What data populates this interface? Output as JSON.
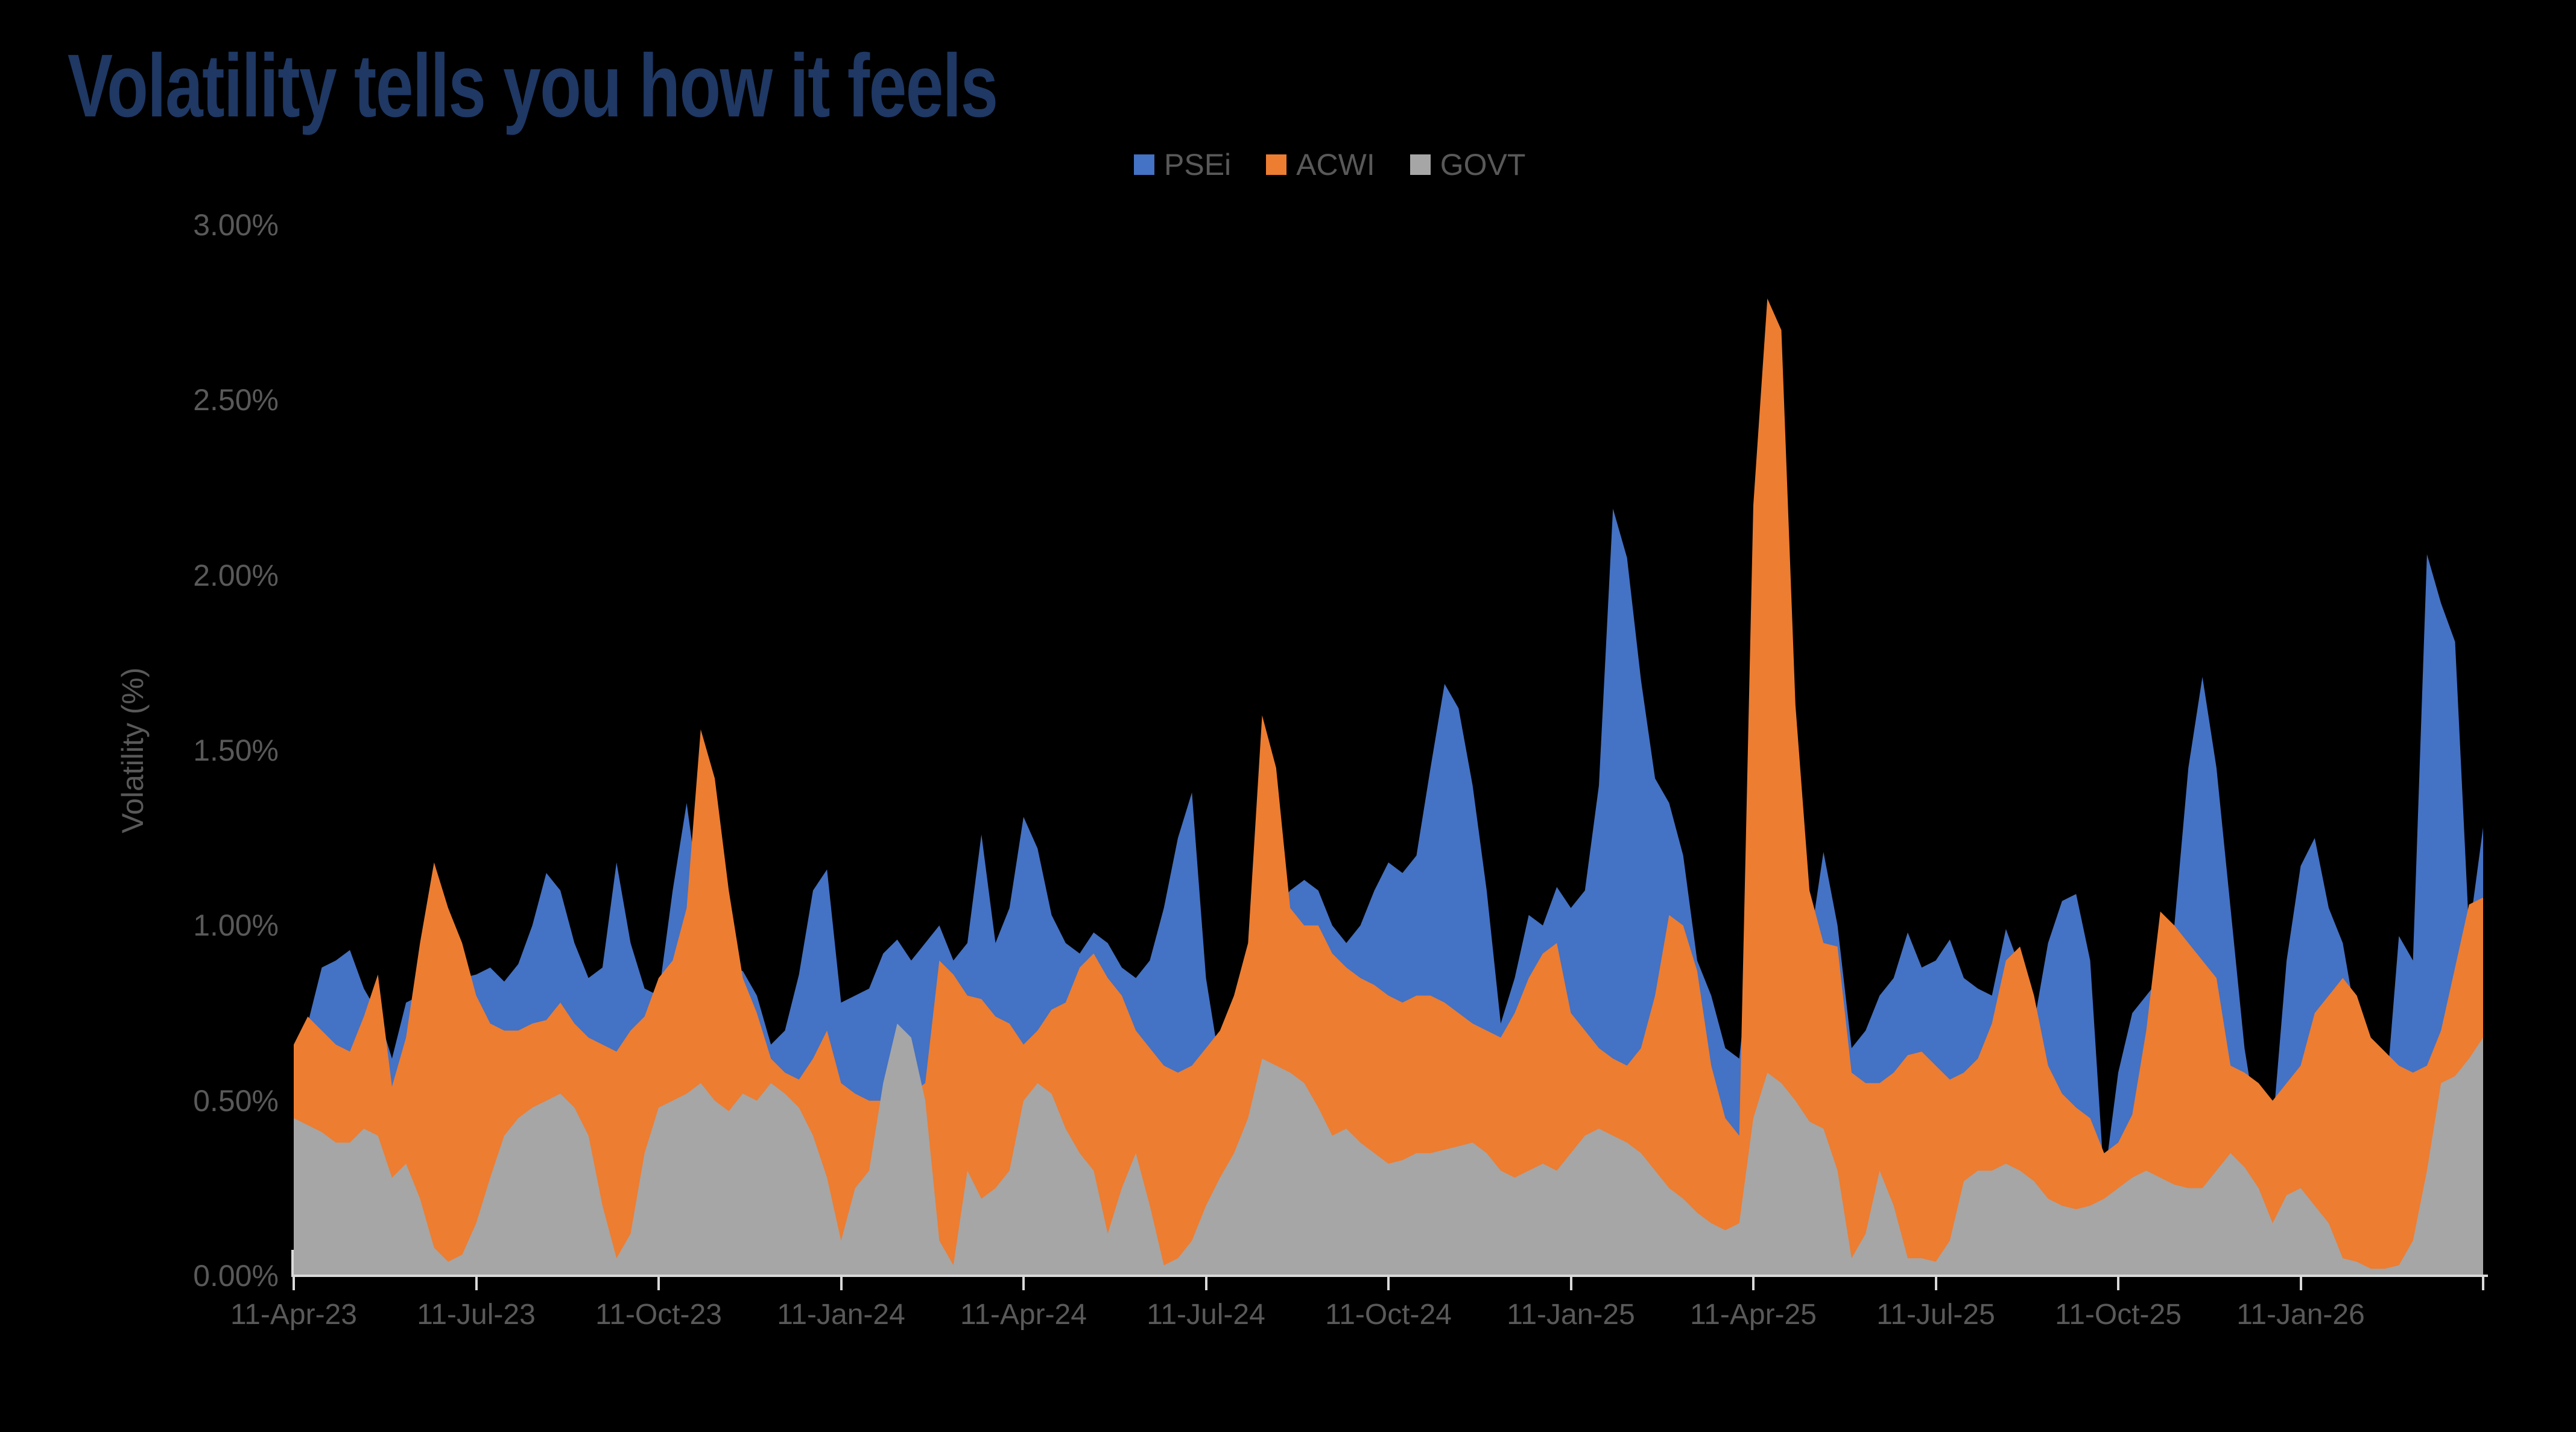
{
  "page": {
    "title": "Volatility tells you how it feels",
    "background_color": "#000000",
    "title_color": "#1F3864",
    "text_color": "#595959",
    "axis_line_color": "#D9D9D9"
  },
  "chart_data": {
    "type": "area",
    "title": "Volatility tells you how it feels",
    "xlabel": "",
    "ylabel": "Volatility (%)",
    "ylim": [
      0,
      3.0
    ],
    "y_tick_labels": [
      "0.00%",
      "0.50%",
      "1.00%",
      "1.50%",
      "2.00%",
      "2.50%",
      "3.00%"
    ],
    "x_tick_labels": [
      "11-Apr-23",
      "11-Jul-23",
      "11-Oct-23",
      "11-Jan-24",
      "11-Apr-24",
      "11-Jul-24",
      "11-Oct-24",
      "11-Jan-25",
      "11-Apr-25",
      "11-Jul-25",
      "11-Oct-25",
      "11-Jan-26"
    ],
    "x_ticks_every_n_points": 13,
    "points_are_weekly": true,
    "x_start_label": "11-Apr-23",
    "grid": false,
    "legend_position": "top",
    "overlap_mode": "overlapping-areas-not-stacked",
    "series": [
      {
        "name": "PSEi",
        "color": "#4472C4",
        "values": [
          0.6,
          0.72,
          0.88,
          0.9,
          0.93,
          0.82,
          0.75,
          0.62,
          0.78,
          0.8,
          0.75,
          0.83,
          0.85,
          0.86,
          0.88,
          0.84,
          0.89,
          1.0,
          1.15,
          1.1,
          0.95,
          0.85,
          0.88,
          1.18,
          0.95,
          0.82,
          0.8,
          1.1,
          1.35,
          1.05,
          0.95,
          0.88,
          0.87,
          0.8,
          0.66,
          0.7,
          0.86,
          1.1,
          1.16,
          0.78,
          0.8,
          0.82,
          0.92,
          0.96,
          0.9,
          0.95,
          1.0,
          0.9,
          0.95,
          1.26,
          0.95,
          1.05,
          1.31,
          1.22,
          1.03,
          0.95,
          0.92,
          0.98,
          0.95,
          0.88,
          0.85,
          0.9,
          1.05,
          1.25,
          1.38,
          0.85,
          0.6,
          0.65,
          0.75,
          0.9,
          1.05,
          1.1,
          1.13,
          1.1,
          1.0,
          0.95,
          1.0,
          1.1,
          1.18,
          1.15,
          1.2,
          1.45,
          1.69,
          1.62,
          1.4,
          1.1,
          0.72,
          0.85,
          1.03,
          1.0,
          1.11,
          1.05,
          1.1,
          1.4,
          2.19,
          2.05,
          1.7,
          1.42,
          1.35,
          1.2,
          0.9,
          0.8,
          0.65,
          0.62,
          1.0,
          1.1,
          1.05,
          0.95,
          0.94,
          1.21,
          1.0,
          0.65,
          0.7,
          0.8,
          0.85,
          0.98,
          0.88,
          0.9,
          0.96,
          0.85,
          0.82,
          0.8,
          0.99,
          0.88,
          0.72,
          0.95,
          1.07,
          1.09,
          0.9,
          0.27,
          0.58,
          0.75,
          0.8,
          0.85,
          1.0,
          1.45,
          1.71,
          1.45,
          1.05,
          0.65,
          0.4,
          0.42,
          0.9,
          1.17,
          1.25,
          1.05,
          0.95,
          0.72,
          0.67,
          0.47,
          0.97,
          0.9,
          2.06,
          1.92,
          1.81,
          0.98,
          1.28
        ]
      },
      {
        "name": "ACWI",
        "color": "#ED7D31",
        "values": [
          0.66,
          0.74,
          0.7,
          0.66,
          0.64,
          0.74,
          0.86,
          0.54,
          0.68,
          0.95,
          1.18,
          1.05,
          0.95,
          0.8,
          0.72,
          0.7,
          0.7,
          0.72,
          0.73,
          0.78,
          0.72,
          0.68,
          0.66,
          0.64,
          0.7,
          0.74,
          0.85,
          0.9,
          1.05,
          1.56,
          1.42,
          1.1,
          0.85,
          0.75,
          0.62,
          0.58,
          0.56,
          0.62,
          0.7,
          0.55,
          0.52,
          0.5,
          0.5,
          0.5,
          0.52,
          0.55,
          0.9,
          0.86,
          0.8,
          0.79,
          0.74,
          0.72,
          0.66,
          0.7,
          0.76,
          0.78,
          0.88,
          0.92,
          0.85,
          0.8,
          0.7,
          0.65,
          0.6,
          0.58,
          0.6,
          0.65,
          0.7,
          0.8,
          0.95,
          1.6,
          1.45,
          1.05,
          1.0,
          1.0,
          0.92,
          0.88,
          0.85,
          0.83,
          0.8,
          0.78,
          0.8,
          0.8,
          0.78,
          0.75,
          0.72,
          0.7,
          0.68,
          0.75,
          0.85,
          0.92,
          0.95,
          0.75,
          0.7,
          0.65,
          0.62,
          0.6,
          0.65,
          0.8,
          1.03,
          1.0,
          0.87,
          0.6,
          0.45,
          0.4,
          2.2,
          2.79,
          2.7,
          1.63,
          1.1,
          0.95,
          0.94,
          0.58,
          0.55,
          0.55,
          0.58,
          0.63,
          0.64,
          0.6,
          0.56,
          0.58,
          0.62,
          0.72,
          0.9,
          0.94,
          0.8,
          0.6,
          0.52,
          0.48,
          0.45,
          0.35,
          0.38,
          0.46,
          0.7,
          1.04,
          1.0,
          0.95,
          0.9,
          0.85,
          0.6,
          0.58,
          0.55,
          0.5,
          0.55,
          0.6,
          0.75,
          0.8,
          0.85,
          0.8,
          0.68,
          0.64,
          0.6,
          0.58,
          0.6,
          0.7,
          0.88,
          1.06,
          1.08
        ]
      },
      {
        "name": "GOVT",
        "color": "#A6A6A6",
        "values": [
          0.45,
          0.43,
          0.41,
          0.38,
          0.38,
          0.42,
          0.4,
          0.28,
          0.32,
          0.22,
          0.08,
          0.04,
          0.06,
          0.15,
          0.28,
          0.4,
          0.45,
          0.48,
          0.5,
          0.52,
          0.48,
          0.4,
          0.2,
          0.05,
          0.12,
          0.35,
          0.48,
          0.5,
          0.52,
          0.55,
          0.5,
          0.47,
          0.52,
          0.5,
          0.55,
          0.52,
          0.48,
          0.4,
          0.28,
          0.1,
          0.25,
          0.3,
          0.55,
          0.72,
          0.68,
          0.5,
          0.1,
          0.03,
          0.3,
          0.22,
          0.25,
          0.3,
          0.5,
          0.55,
          0.52,
          0.42,
          0.35,
          0.3,
          0.12,
          0.25,
          0.35,
          0.2,
          0.03,
          0.05,
          0.1,
          0.2,
          0.28,
          0.35,
          0.45,
          0.62,
          0.6,
          0.58,
          0.55,
          0.48,
          0.4,
          0.42,
          0.38,
          0.35,
          0.32,
          0.33,
          0.35,
          0.35,
          0.36,
          0.37,
          0.38,
          0.35,
          0.3,
          0.28,
          0.3,
          0.32,
          0.3,
          0.35,
          0.4,
          0.42,
          0.4,
          0.38,
          0.35,
          0.3,
          0.25,
          0.22,
          0.18,
          0.15,
          0.13,
          0.15,
          0.45,
          0.58,
          0.55,
          0.5,
          0.44,
          0.42,
          0.3,
          0.05,
          0.12,
          0.3,
          0.2,
          0.05,
          0.05,
          0.04,
          0.1,
          0.27,
          0.3,
          0.3,
          0.32,
          0.3,
          0.27,
          0.22,
          0.2,
          0.19,
          0.2,
          0.22,
          0.25,
          0.28,
          0.3,
          0.28,
          0.26,
          0.25,
          0.25,
          0.3,
          0.35,
          0.31,
          0.25,
          0.15,
          0.23,
          0.25,
          0.2,
          0.15,
          0.05,
          0.04,
          0.02,
          0.02,
          0.03,
          0.1,
          0.3,
          0.55,
          0.57,
          0.62,
          0.68
        ]
      }
    ]
  }
}
